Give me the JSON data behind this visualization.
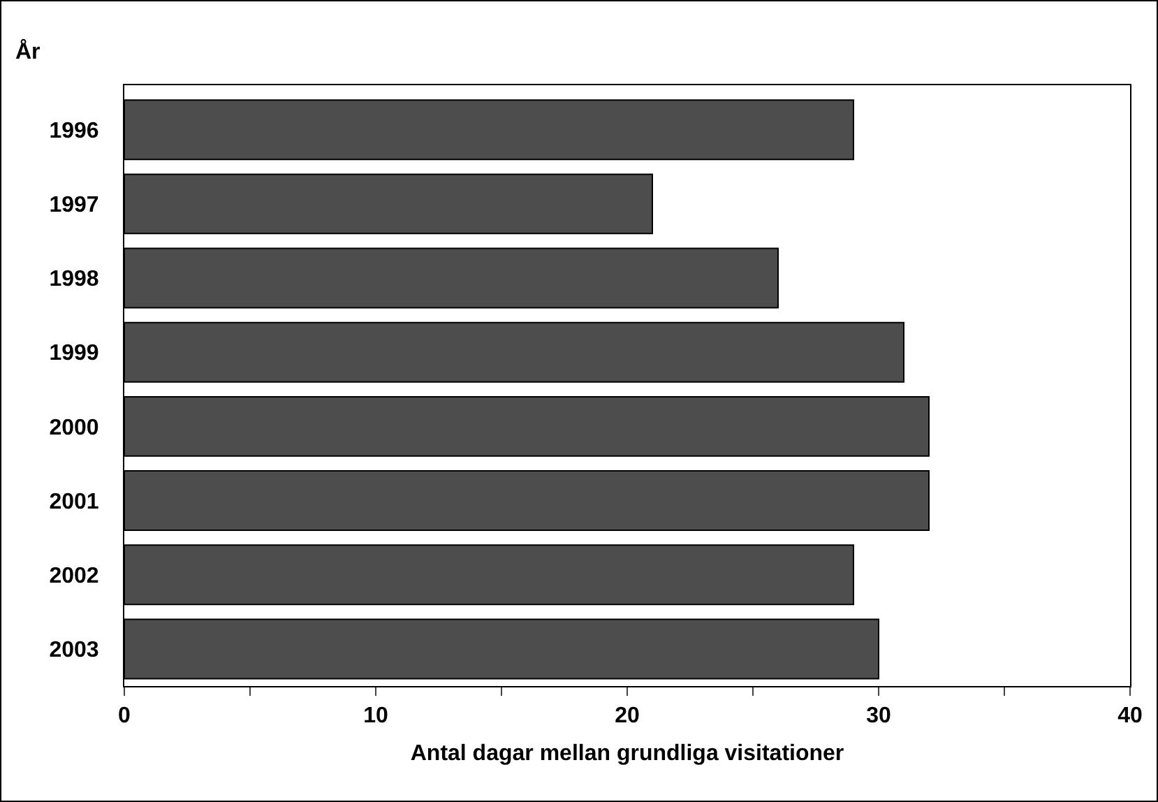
{
  "chart_data": {
    "type": "bar",
    "orientation": "horizontal",
    "ylabel": "År",
    "xlabel": "Antal dagar mellan grundliga visitationer",
    "categories": [
      "1996",
      "1997",
      "1998",
      "1999",
      "2000",
      "2001",
      "2002",
      "2003"
    ],
    "values": [
      29,
      21,
      26,
      31,
      32,
      32,
      29,
      30
    ],
    "color": "#4d4d4d",
    "xlim": [
      0,
      40
    ],
    "xticks": [
      0,
      {
        "value": 5,
        "label": null
      },
      10,
      {
        "value": 15,
        "label": null
      },
      20,
      {
        "value": 25,
        "label": null
      },
      30,
      {
        "value": 35,
        "label": null
      },
      40
    ],
    "grid": false,
    "legend": false
  }
}
